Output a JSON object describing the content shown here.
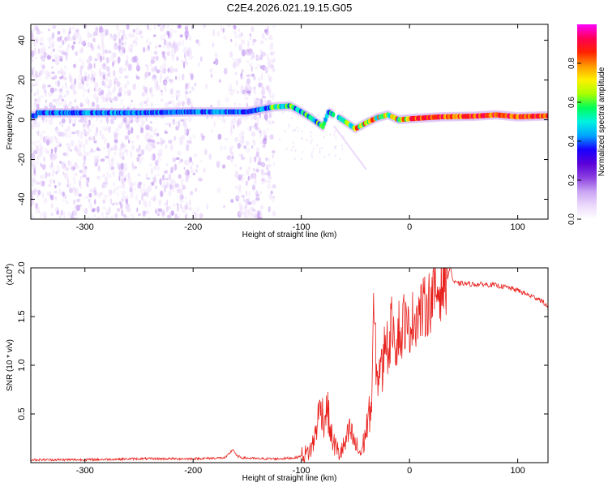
{
  "title": "C2E4.2026.021.19.15.G05",
  "chart_data": [
    {
      "type": "heatmap",
      "title": "C2E4.2026.021.19.15.G05",
      "xlabel": "Height of straight line (km)",
      "ylabel": "Frequency (Hz)",
      "xlim": [
        -350,
        128
      ],
      "ylim": [
        -50,
        48
      ],
      "xticks": [
        -300,
        -200,
        -100,
        0,
        100
      ],
      "yticks": [
        40,
        20,
        0,
        -20,
        -40
      ],
      "xtick_labels": [
        "-300",
        "-200",
        "-100",
        "0",
        "100"
      ],
      "ytick_labels": [
        "40",
        "20",
        "0",
        "-20",
        "-40"
      ],
      "colorbar": {
        "label": "Normalized spectral amplitude",
        "range": [
          0.0,
          1.0
        ],
        "ticks": [
          0.0,
          0.2,
          0.4,
          0.6,
          0.8
        ],
        "tick_labels": [
          "0.0",
          "0.2",
          "0.4",
          "0.6",
          "0.8"
        ],
        "colors": [
          "#ffffff",
          "#ecd9fb",
          "#c9a3f3",
          "#8b3fe0",
          "#5a00d8",
          "#1800ff",
          "#00a5ff",
          "#00f2e0",
          "#00ff5a",
          "#a8ff00",
          "#fff000",
          "#ff9a00",
          "#ff2200",
          "#ff0055",
          "#ff00ff"
        ]
      },
      "dominant_ridge": [
        {
          "x": -345,
          "f": 3.5
        },
        {
          "x": -300,
          "f": 3.5
        },
        {
          "x": -250,
          "f": 3.5
        },
        {
          "x": -200,
          "f": 4.0
        },
        {
          "x": -150,
          "f": 4.0
        },
        {
          "x": -125,
          "f": 6.5
        },
        {
          "x": -110,
          "f": 7.0
        },
        {
          "x": -100,
          "f": 4.0
        },
        {
          "x": -90,
          "f": 0.5
        },
        {
          "x": -80,
          "f": -3.5
        },
        {
          "x": -75,
          "f": 4.0
        },
        {
          "x": -62,
          "f": 0.0
        },
        {
          "x": -50,
          "f": -4.5
        },
        {
          "x": -40,
          "f": -1.5
        },
        {
          "x": -30,
          "f": 1.0
        },
        {
          "x": -20,
          "f": 2.5
        },
        {
          "x": -10,
          "f": 0.0
        },
        {
          "x": 0,
          "f": 0.5
        },
        {
          "x": 30,
          "f": 1.5
        },
        {
          "x": 60,
          "f": 1.8
        },
        {
          "x": 80,
          "f": 2.5
        },
        {
          "x": 100,
          "f": 1.5
        },
        {
          "x": 128,
          "f": 2.0
        }
      ],
      "broadband_noise_ranges_km": [
        [
          -350,
          -125
        ]
      ],
      "noise_gap_km": [
        [
          -200,
          -165
        ]
      ]
    },
    {
      "type": "line",
      "title": "",
      "xlabel": "Height of straight line (km)",
      "ylabel": "SNR (10 * v/v)",
      "y_multiplier_label": "(x10",
      "y_multiplier_exponent": "4",
      "y_multiplier_close": ")",
      "xlim": [
        -350,
        128
      ],
      "ylim": [
        0,
        2.0
      ],
      "xticks": [
        -300,
        -200,
        -100,
        0,
        100
      ],
      "yticks": [
        0.5,
        1.0,
        1.5,
        2.0
      ],
      "xtick_labels": [
        "-300",
        "-200",
        "-100",
        "0",
        "100"
      ],
      "ytick_labels": [
        "0.5",
        "1.0",
        "1.5",
        "2.0"
      ],
      "line_color": "#e8201c",
      "series": [
        {
          "name": "SNR",
          "x": [
            -350,
            -300,
            -250,
            -200,
            -170,
            -163,
            -160,
            -155,
            -140,
            -120,
            -105,
            -100,
            -95,
            -90,
            -87,
            -85,
            -82,
            -79,
            -76,
            -73,
            -70,
            -65,
            -60,
            -55,
            -50,
            -45,
            -42,
            -38,
            -35,
            -33,
            -30,
            -27,
            -25,
            -22,
            -20,
            -18,
            -15,
            -12,
            -10,
            -8,
            -5,
            -2,
            0,
            5,
            10,
            15,
            20,
            25,
            30,
            35,
            38,
            40,
            43,
            50,
            60,
            70,
            80,
            90,
            100,
            110,
            120,
            128
          ],
          "y": [
            0.03,
            0.03,
            0.04,
            0.04,
            0.05,
            0.14,
            0.07,
            0.05,
            0.04,
            0.04,
            0.05,
            0.07,
            0.09,
            0.16,
            0.3,
            0.44,
            0.6,
            0.43,
            0.58,
            0.3,
            0.2,
            0.09,
            0.17,
            0.33,
            0.18,
            0.09,
            0.22,
            0.45,
            0.6,
            1.58,
            0.8,
            1.05,
            0.9,
            1.4,
            1.12,
            1.3,
            1.52,
            1.15,
            1.43,
            1.22,
            1.52,
            1.3,
            1.42,
            1.5,
            1.55,
            1.6,
            1.68,
            1.75,
            1.82,
            1.9,
            2.02,
            1.87,
            1.84,
            1.84,
            1.83,
            1.83,
            1.82,
            1.8,
            1.77,
            1.72,
            1.68,
            1.6
          ]
        }
      ]
    }
  ]
}
